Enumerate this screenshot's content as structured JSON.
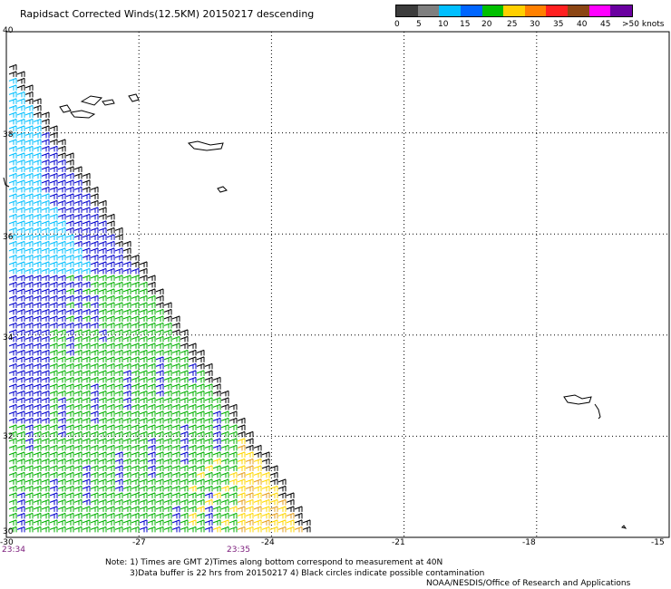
{
  "title": "Rapidsact Corrected Winds(12.5KM) 20150217 descending",
  "legend": {
    "labels": [
      "0",
      "5",
      "10",
      "15",
      "20",
      "25",
      "30",
      "35",
      "40",
      "45",
      ">50 knots"
    ],
    "colors": [
      "#3c3c3c",
      "#7f7f7f",
      "#00bfff",
      "#0066ff",
      "#00c000",
      "#ffd000",
      "#ff8000",
      "#ff2020",
      "#8b4513",
      "#ff00ff",
      "#6a00a0"
    ]
  },
  "axes": {
    "lat_labels": [
      "40",
      "38",
      "36",
      "34",
      "32",
      "30"
    ],
    "lon_labels": [
      "-30",
      "-27",
      "-24",
      "-21",
      "-18",
      "-15"
    ]
  },
  "times": {
    "start": "23:34",
    "mid": "23:35"
  },
  "notes": {
    "line1": "Note: 1) Times are GMT 2)Times along bottom correspond to measurement at 40N",
    "line2": "3)Data buffer is 22 hrs from 20150217 4) Black circles indicate possible contamination",
    "line3": "NOAA/NESDIS/Office of Research and Applications"
  },
  "colors": {
    "light_blue": "#00bfff",
    "blue": "#0000cc",
    "green": "#00b000",
    "yellow": "#ffd700",
    "orange": "#e6a020",
    "black": "#000000"
  },
  "chart_data": {
    "type": "wind-barb-map",
    "xlim": [
      -30,
      -15
    ],
    "ylim": [
      30,
      40
    ],
    "wind_speed_units": "knots",
    "swath_edge": [
      [
        -30.0,
        39.5
      ],
      [
        -23.0,
        30.0
      ]
    ]
  }
}
